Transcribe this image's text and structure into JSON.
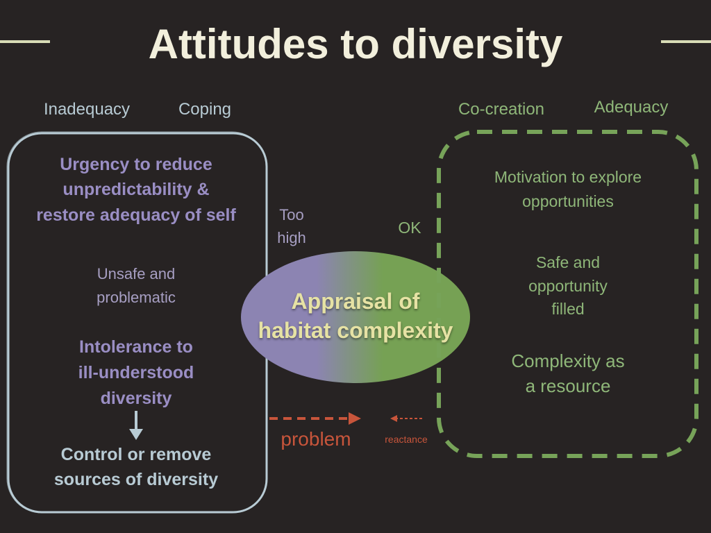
{
  "title": "Attitudes to diversity",
  "labels": {
    "inadequacy": "Inadequacy",
    "coping": "Coping",
    "co_creation": "Co-creation",
    "adequacy": "Adequacy"
  },
  "left_box": {
    "urgency": [
      "Urgency to reduce",
      "unpredictability &",
      "restore adequacy of self"
    ],
    "unsafe": [
      "Unsafe and",
      "problematic"
    ],
    "intolerance": [
      "Intolerance to",
      "ill-understood",
      "diversity"
    ],
    "control": [
      "Control or remove",
      "sources of diversity"
    ]
  },
  "too_high": [
    "Too",
    "high"
  ],
  "ok": "OK",
  "center": [
    "Appraisal of",
    "habitat complexity"
  ],
  "right_box": {
    "motivation": [
      "Motivation to explore",
      "opportunities"
    ],
    "safe": [
      "Safe and",
      "opportunity",
      "filled"
    ],
    "complexity": [
      "Complexity as",
      "a resource"
    ]
  },
  "problem": "problem",
  "reactance": "reactance",
  "colors": {
    "background": "#272323",
    "title": "#f2efdc",
    "rule": "#d8dcb6",
    "blue": "#b8cbd4",
    "purple": "#9a8ec4",
    "purple_light": "#a79fc3",
    "green": "#8fb779",
    "green_dark": "#77a359",
    "red": "#c8553b",
    "ellipse_text": "#e6e2a4",
    "ellipse_left": "#8c84b2",
    "ellipse_right": "#76a154"
  }
}
